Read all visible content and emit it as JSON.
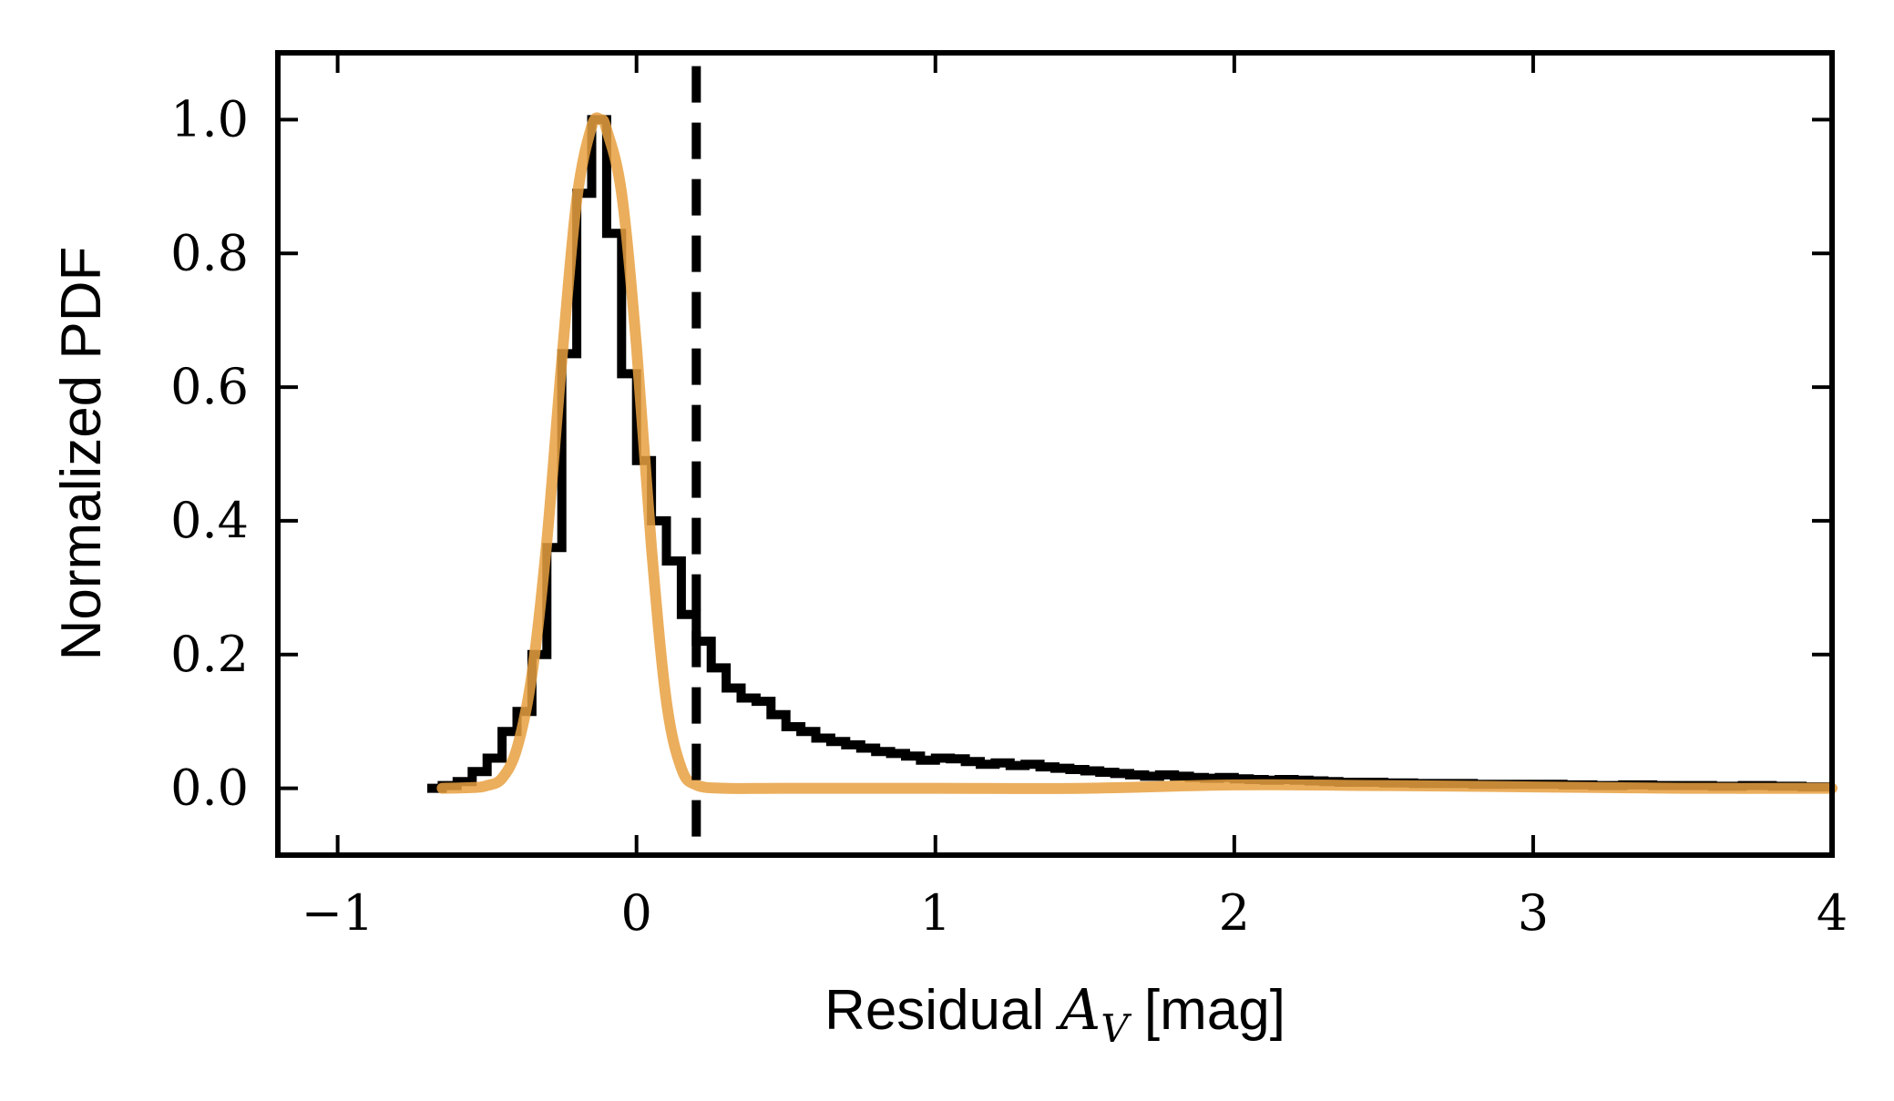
{
  "chart_data": {
    "type": "line",
    "xlabel_prefix": "Residual ",
    "xlabel_math_base": "A",
    "xlabel_math_sub": "V",
    "xlabel_suffix": " [mag]",
    "ylabel": "Normalized PDF",
    "xlim": [
      -1.2,
      4.0
    ],
    "ylim": [
      -0.1,
      1.1
    ],
    "x_ticks": [
      -1,
      0,
      1,
      2,
      3,
      4
    ],
    "x_tick_labels": [
      "−1",
      "0",
      "1",
      "2",
      "3",
      "4"
    ],
    "y_ticks": [
      0.0,
      0.2,
      0.4,
      0.6,
      0.8,
      1.0
    ],
    "y_tick_labels": [
      "0.0",
      "0.2",
      "0.4",
      "0.6",
      "0.8",
      "1.0"
    ],
    "grid": false,
    "vline": {
      "x": 0.2,
      "style": "dashed",
      "color": "#000000"
    },
    "series": [
      {
        "style": "step-histogram",
        "color": "#000000",
        "x": [
          -0.7,
          -0.65,
          -0.6,
          -0.55,
          -0.5,
          -0.45,
          -0.4,
          -0.35,
          -0.3,
          -0.25,
          -0.2,
          -0.15,
          -0.1,
          -0.05,
          0.0,
          0.05,
          0.1,
          0.15,
          0.2,
          0.25,
          0.3,
          0.35,
          0.4,
          0.45,
          0.5,
          0.55,
          0.6,
          0.65,
          0.7,
          0.75,
          0.8,
          0.85,
          0.9,
          0.95,
          1.0,
          1.05,
          1.1,
          1.15,
          1.2,
          1.25,
          1.3,
          1.35,
          1.4,
          1.45,
          1.5,
          1.55,
          1.6,
          1.65,
          1.7,
          1.75,
          1.8,
          1.85,
          1.9,
          1.95,
          2.0,
          2.05,
          2.1,
          2.15,
          2.2,
          2.25,
          2.3,
          2.35,
          2.4,
          2.5,
          2.6,
          2.7,
          2.8,
          2.9,
          3.0,
          3.1,
          3.2,
          3.3,
          3.4,
          3.5,
          3.6,
          3.7,
          3.8,
          3.9
        ],
        "y": [
          0.0,
          0.004,
          0.01,
          0.025,
          0.045,
          0.085,
          0.115,
          0.2,
          0.36,
          0.65,
          0.89,
          1.0,
          0.83,
          0.62,
          0.49,
          0.4,
          0.34,
          0.26,
          0.22,
          0.18,
          0.15,
          0.135,
          0.13,
          0.11,
          0.092,
          0.085,
          0.075,
          0.07,
          0.065,
          0.06,
          0.055,
          0.052,
          0.048,
          0.042,
          0.045,
          0.044,
          0.04,
          0.036,
          0.038,
          0.034,
          0.036,
          0.032,
          0.03,
          0.028,
          0.026,
          0.024,
          0.022,
          0.02,
          0.018,
          0.02,
          0.018,
          0.016,
          0.015,
          0.016,
          0.014,
          0.013,
          0.012,
          0.013,
          0.012,
          0.011,
          0.01,
          0.009,
          0.009,
          0.008,
          0.007,
          0.007,
          0.006,
          0.006,
          0.006,
          0.005,
          0.004,
          0.005,
          0.004,
          0.004,
          0.003,
          0.004,
          0.003,
          0.002
        ]
      },
      {
        "style": "smooth",
        "color": "#E8A040",
        "x": [
          -0.65,
          -0.55,
          -0.5,
          -0.45,
          -0.4,
          -0.35,
          -0.3,
          -0.25,
          -0.2,
          -0.15,
          -0.12,
          -0.1,
          -0.05,
          0.0,
          0.05,
          0.1,
          0.15,
          0.2,
          0.3,
          0.5,
          1.0,
          1.5,
          2.0,
          2.5,
          3.0,
          3.5,
          4.0
        ],
        "y": [
          0.0,
          0.001,
          0.004,
          0.015,
          0.06,
          0.17,
          0.37,
          0.64,
          0.88,
          0.99,
          1.0,
          0.985,
          0.89,
          0.66,
          0.36,
          0.13,
          0.03,
          0.005,
          0.0,
          0.0,
          0.0,
          0.0,
          0.005,
          0.004,
          0.002,
          0.0,
          0.0
        ]
      }
    ]
  }
}
